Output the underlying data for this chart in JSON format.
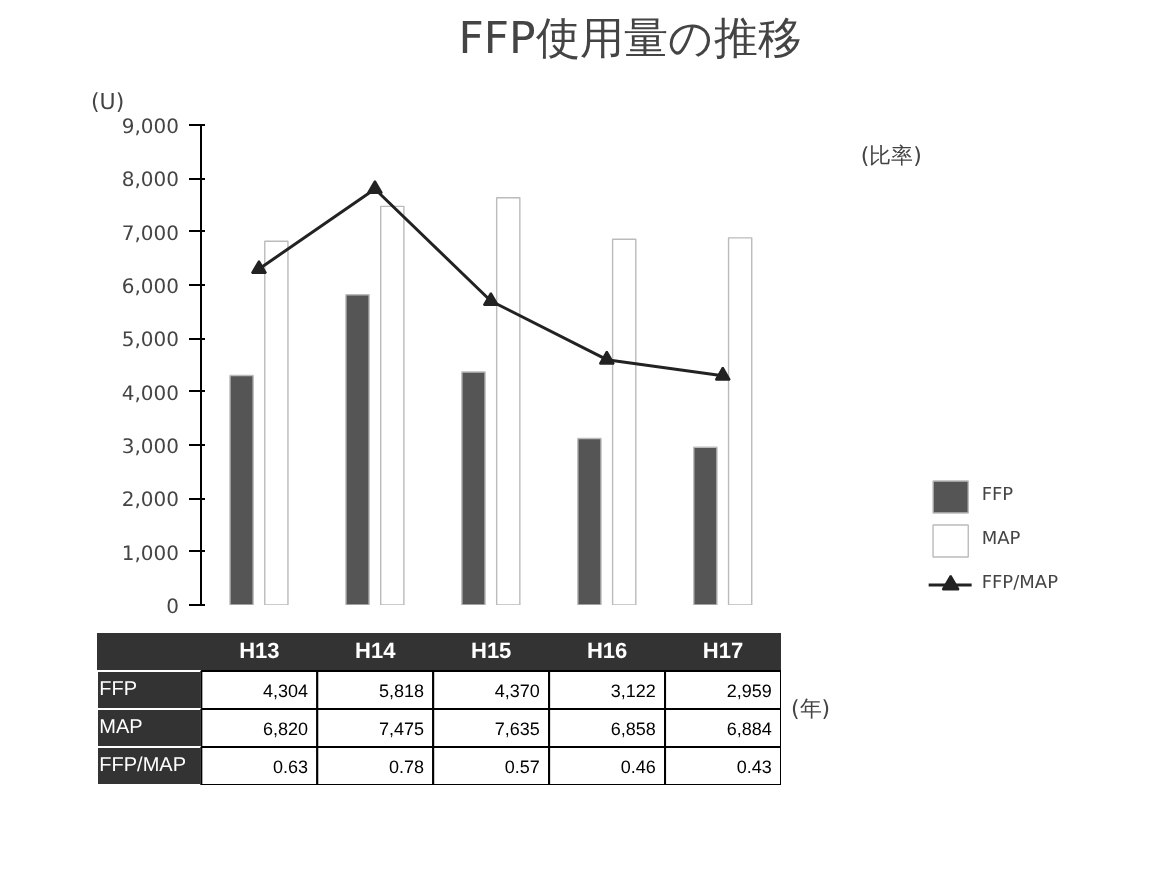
{
  "chart_data": {
    "type": "bar",
    "title": "FFP使用量の推移",
    "ylabel": "(U)",
    "y2label": "(比率)",
    "xlabel": "(年)",
    "categories": [
      "H13",
      "H14",
      "H15",
      "H16",
      "H17"
    ],
    "series": [
      {
        "name": "FFP",
        "color": "#555555",
        "values": [
          4304,
          5818,
          4370,
          3122,
          2959
        ],
        "value_labels": [
          "4,304",
          "5,818",
          "4,370",
          "3,122",
          "2,959"
        ]
      },
      {
        "name": "MAP",
        "color": "#ffffff",
        "values": [
          6820,
          7475,
          7635,
          6858,
          6884
        ],
        "value_labels": [
          "6,820",
          "7,475",
          "7,635",
          "6,858",
          "6,884"
        ]
      },
      {
        "name": "FFP/MAP",
        "type": "line",
        "axis": "y2",
        "color": "#222222",
        "marker": "triangle",
        "values": [
          0.63,
          0.78,
          0.57,
          0.46,
          0.43
        ],
        "value_labels": [
          "0.63",
          "0.78",
          "0.57",
          "0.46",
          "0.43"
        ]
      }
    ],
    "ylim": [
      0,
      9000
    ],
    "yticks": [
      0,
      {
        "value": 1000,
        "label": "1,000"
      },
      {
        "value": 2000,
        "label": "2,000"
      },
      {
        "value": 3000,
        "label": "3,000"
      },
      {
        "value": 4000,
        "label": "4,000"
      },
      {
        "value": 5000,
        "label": "5,000"
      },
      {
        "value": 6000,
        "label": "6,000"
      },
      {
        "value": 7000,
        "label": "7,000"
      },
      {
        "value": 8000,
        "label": "8,000"
      },
      {
        "value": 9000,
        "label": "9,000"
      }
    ],
    "y2lim": [
      0,
      0.9
    ],
    "grid": false,
    "legend": "right"
  }
}
